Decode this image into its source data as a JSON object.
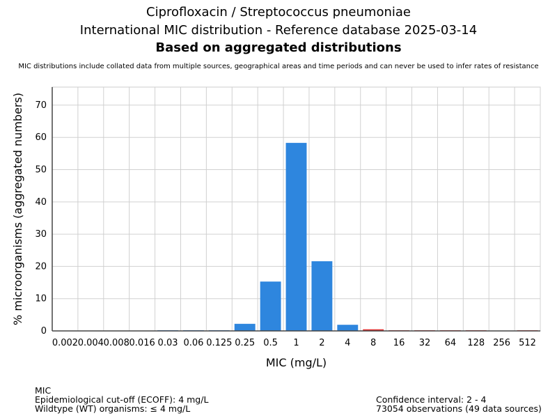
{
  "chart_data": {
    "type": "bar",
    "title": "Ciprofloxacin / Streptococcus pneumoniae",
    "subtitle": "International MIC distribution - Reference database 2025-03-14",
    "subtitle2": "Based on aggregated distributions",
    "note": "MIC distributions include collated data from multiple sources, geographical areas and time periods and can never be used to infer rates of resistance",
    "xlabel": "MIC (mg/L)",
    "ylabel": "% microorganisms (aggregated numbers)",
    "categories": [
      "0.002",
      "0.004",
      "0.008",
      "0.016",
      "0.03",
      "0.06",
      "0.125",
      "0.25",
      "0.5",
      "1",
      "2",
      "4",
      "8",
      "16",
      "32",
      "64",
      "128",
      "256",
      "512"
    ],
    "values": [
      0,
      0,
      0,
      0,
      0.2,
      0.2,
      0.2,
      2.2,
      15.3,
      58.3,
      21.6,
      1.9,
      0.5,
      0.2,
      0.2,
      0.2,
      0.2,
      0,
      0.2
    ],
    "ecoff": 4,
    "colors": {
      "wt": "#2e86de",
      "nonwt": "#e03131"
    },
    "yticks": [
      0,
      10,
      20,
      30,
      40,
      50,
      60,
      70
    ],
    "ylim": [
      0,
      75.6
    ],
    "grid": true
  },
  "footer": {
    "left": [
      "MIC",
      "Epidemiological cut-off (ECOFF): 4 mg/L",
      "Wildtype (WT) organisms: ≤ 4 mg/L"
    ],
    "right": [
      "Confidence interval: 2 - 4",
      "73054 observations (49 data sources)"
    ]
  }
}
